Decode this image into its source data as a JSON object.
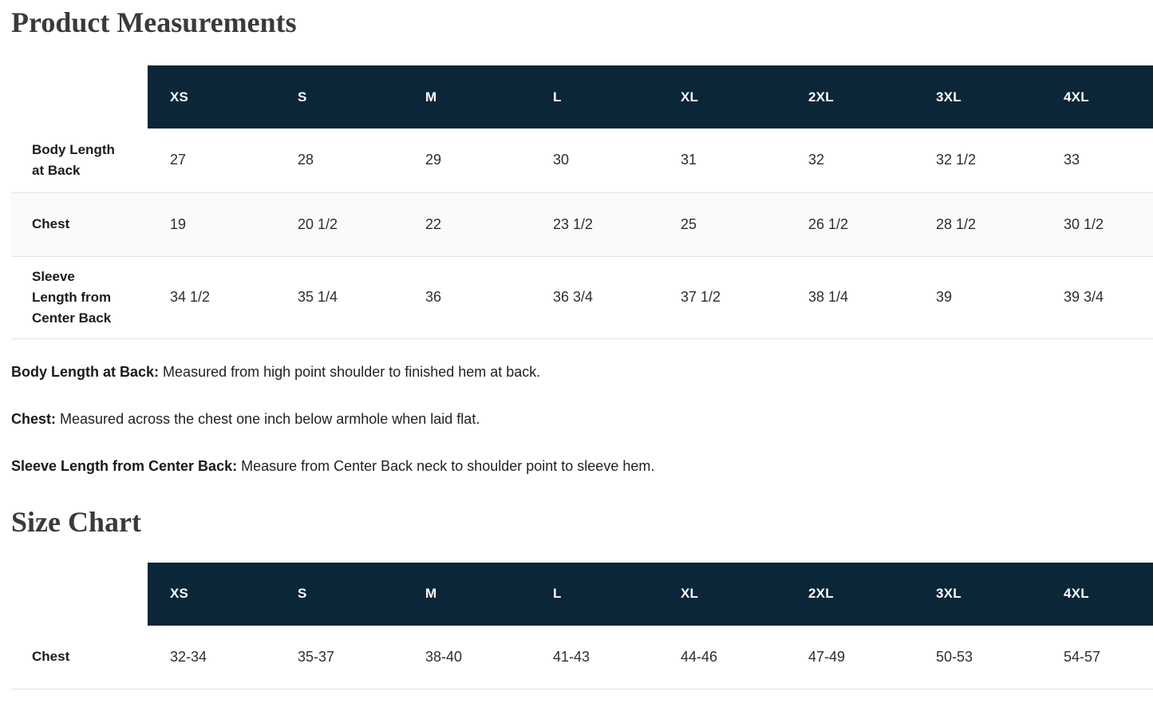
{
  "colors": {
    "table_header_bg": "#0b2637",
    "table_header_text": "#ffffff",
    "row_stripe_bg": "#fafafa",
    "divider": "#e2e2e2"
  },
  "product_measurements": {
    "title": "Product Measurements",
    "table": {
      "sizes": [
        "XS",
        "S",
        "M",
        "L",
        "XL",
        "2XL",
        "3XL",
        "4XL"
      ],
      "rows": [
        {
          "label": "Body Length at Back",
          "values": [
            "27",
            "28",
            "29",
            "30",
            "31",
            "32",
            "32 1/2",
            "33"
          ]
        },
        {
          "label": "Chest",
          "values": [
            "19",
            "20 1/2",
            "22",
            "23 1/2",
            "25",
            "26 1/2",
            "28 1/2",
            "30 1/2"
          ]
        },
        {
          "label": "Sleeve Length from Center Back",
          "values": [
            "34 1/2",
            "35 1/4",
            "36",
            "36 3/4",
            "37 1/2",
            "38 1/4",
            "39",
            "39 3/4"
          ]
        }
      ]
    },
    "notes": [
      {
        "term": "Body Length at Back:",
        "definition": "Measured from high point shoulder to finished hem at back."
      },
      {
        "term": "Chest:",
        "definition": "Measured across the chest one inch below armhole when laid flat."
      },
      {
        "term": "Sleeve Length from Center Back:",
        "definition": "Measure from Center Back neck to shoulder point to sleeve hem."
      }
    ]
  },
  "size_chart": {
    "title": "Size Chart",
    "table": {
      "sizes": [
        "XS",
        "S",
        "M",
        "L",
        "XL",
        "2XL",
        "3XL",
        "4XL"
      ],
      "rows": [
        {
          "label": "Chest",
          "values": [
            "32-34",
            "35-37",
            "38-40",
            "41-43",
            "44-46",
            "47-49",
            "50-53",
            "54-57"
          ]
        }
      ]
    }
  }
}
